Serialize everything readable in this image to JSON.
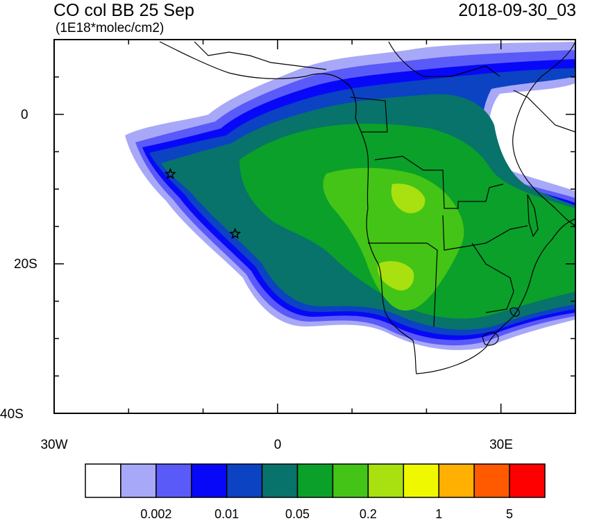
{
  "header": {
    "title": "CO col BB 25 Sep",
    "units": "(1E18*molec/cm2)",
    "datetime": "2018-09-30_03"
  },
  "map": {
    "projection": "lat-lon",
    "lon_range": [
      -30,
      40
    ],
    "lat_range": [
      -40,
      10
    ],
    "y_axis_labels": [
      "0",
      "20S",
      "40S"
    ],
    "x_axis_labels": [
      "30W",
      "0",
      "30E"
    ],
    "markers": [
      {
        "symbol": "star",
        "lon": -14.4,
        "lat": -8.0
      },
      {
        "symbol": "star",
        "lon": -5.7,
        "lat": -16.0
      }
    ]
  },
  "colorbar": {
    "colors": [
      "#ffffff",
      "#a8a8f8",
      "#5a5af8",
      "#0808f8",
      "#0b43c3",
      "#07736a",
      "#0aa02a",
      "#44c416",
      "#a8e010",
      "#f0f800",
      "#ffb000",
      "#ff5a00",
      "#ff0000"
    ],
    "labels": [
      "0.002",
      "0.01",
      "0.05",
      "0.2",
      "1",
      "5"
    ]
  },
  "colors": {
    "land_outline": "#000000",
    "frame": "#000000",
    "background": "#ffffff"
  }
}
